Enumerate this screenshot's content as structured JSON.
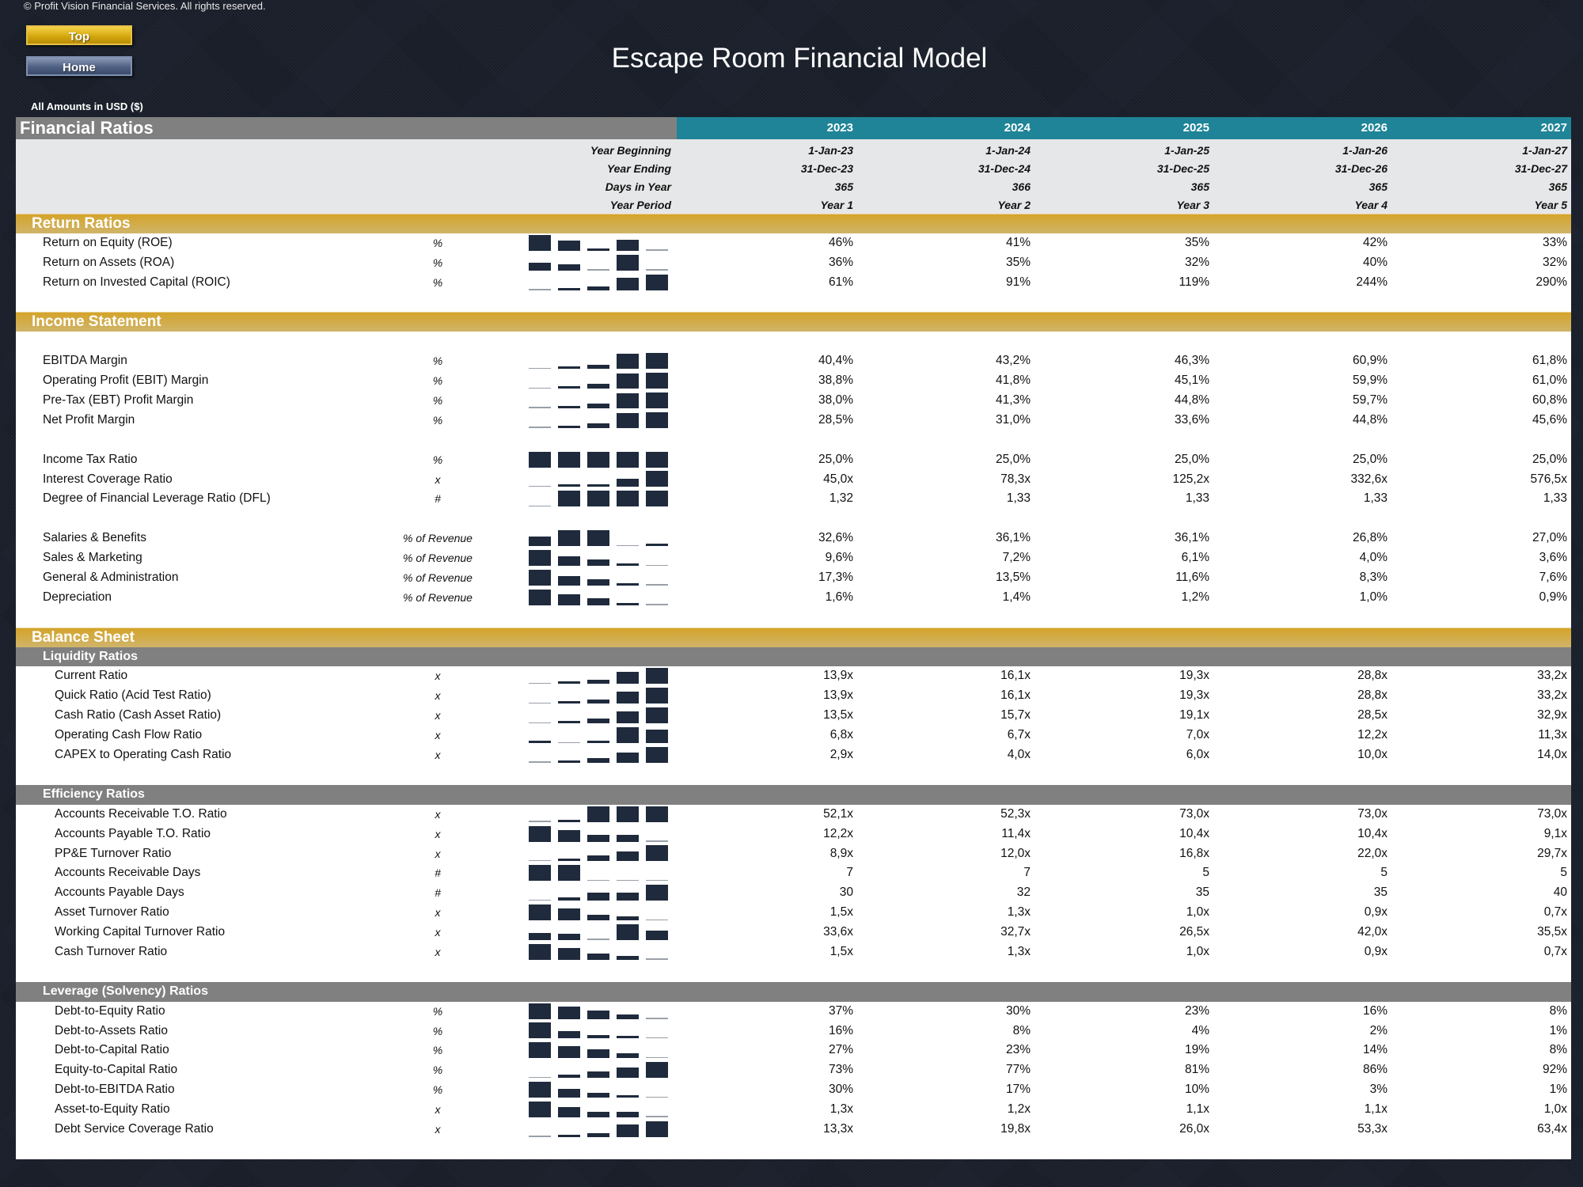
{
  "page": {
    "copyright": "© Profit Vision Financial Services. All rights reserved.",
    "title": "Escape Room Financial Model",
    "currency_note": "All Amounts in  USD ($)"
  },
  "nav": {
    "top_label": "Top",
    "home_label": "Home"
  },
  "colors": {
    "header_gray": "#808080",
    "teal": "#1f8497",
    "gold": "#d4a42a",
    "spark": "#1f2a3c"
  },
  "table": {
    "title": "Financial Ratios",
    "years": [
      "2023",
      "2024",
      "2025",
      "2026",
      "2027"
    ],
    "info": [
      {
        "label": "Year Beginning",
        "values": [
          "1-Jan-23",
          "1-Jan-24",
          "1-Jan-25",
          "1-Jan-26",
          "1-Jan-27"
        ]
      },
      {
        "label": "Year Ending",
        "values": [
          "31-Dec-23",
          "31-Dec-24",
          "31-Dec-25",
          "31-Dec-26",
          "31-Dec-27"
        ]
      },
      {
        "label": "Days in Year",
        "values": [
          "365",
          "366",
          "365",
          "365",
          "365"
        ]
      },
      {
        "label": "Year Period",
        "values": [
          "Year 1",
          "Year 2",
          "Year 3",
          "Year 4",
          "Year 5"
        ]
      }
    ]
  },
  "sections": [
    {
      "title": "Return Ratios",
      "groups": [
        [
          {
            "label": "Return on Equity (ROE)",
            "unit": "%",
            "values": [
              "46%",
              "41%",
              "35%",
              "42%",
              "33%"
            ]
          },
          {
            "label": "Return on Assets (ROA)",
            "unit": "%",
            "values": [
              "36%",
              "35%",
              "32%",
              "40%",
              "32%"
            ]
          },
          {
            "label": "Return on Invested Capital (ROIC)",
            "unit": "%",
            "values": [
              "61%",
              "91%",
              "119%",
              "244%",
              "290%"
            ]
          }
        ]
      ]
    },
    {
      "title": "Income Statement",
      "groups": [
        [],
        [
          {
            "label": "EBITDA Margin",
            "unit": "%",
            "values": [
              "40,4%",
              "43,2%",
              "46,3%",
              "60,9%",
              "61,8%"
            ]
          },
          {
            "label": "Operating Profit (EBIT) Margin",
            "unit": "%",
            "values": [
              "38,8%",
              "41,8%",
              "45,1%",
              "59,9%",
              "61,0%"
            ]
          },
          {
            "label": "Pre-Tax (EBT) Profit Margin",
            "unit": "%",
            "values": [
              "38,0%",
              "41,3%",
              "44,8%",
              "59,7%",
              "60,8%"
            ]
          },
          {
            "label": "Net Profit Margin",
            "unit": "%",
            "values": [
              "28,5%",
              "31,0%",
              "33,6%",
              "44,8%",
              "45,6%"
            ]
          }
        ],
        [
          {
            "label": "Income Tax Ratio",
            "unit": "%",
            "values": [
              "25,0%",
              "25,0%",
              "25,0%",
              "25,0%",
              "25,0%"
            ]
          },
          {
            "label": "Interest Coverage Ratio",
            "unit": "x",
            "values": [
              "45,0x",
              "78,3x",
              "125,2x",
              "332,6x",
              "576,5x"
            ]
          },
          {
            "label": "Degree of Financial Leverage Ratio (DFL)",
            "unit": "#",
            "values": [
              "1,32",
              "1,33",
              "1,33",
              "1,33",
              "1,33"
            ]
          }
        ],
        [
          {
            "label": "Salaries & Benefits",
            "unit": "% of Revenue",
            "values": [
              "32,6%",
              "36,1%",
              "36,1%",
              "26,8%",
              "27,0%"
            ]
          },
          {
            "label": "Sales & Marketing",
            "unit": "% of Revenue",
            "values": [
              "9,6%",
              "7,2%",
              "6,1%",
              "4,0%",
              "3,6%"
            ]
          },
          {
            "label": "General & Administration",
            "unit": "% of Revenue",
            "values": [
              "17,3%",
              "13,5%",
              "11,6%",
              "8,3%",
              "7,6%"
            ]
          },
          {
            "label": "Depreciation",
            "unit": "% of Revenue",
            "values": [
              "1,6%",
              "1,4%",
              "1,2%",
              "1,0%",
              "0,9%"
            ]
          }
        ]
      ]
    },
    {
      "title": "Balance Sheet",
      "subsections": [
        {
          "title": "Liquidity Ratios",
          "rows": [
            {
              "label": "Current Ratio",
              "unit": "x",
              "values": [
                "13,9x",
                "16,1x",
                "19,3x",
                "28,8x",
                "33,2x"
              ]
            },
            {
              "label": "Quick Ratio (Acid Test Ratio)",
              "unit": "x",
              "values": [
                "13,9x",
                "16,1x",
                "19,3x",
                "28,8x",
                "33,2x"
              ]
            },
            {
              "label": "Cash Ratio (Cash Asset Ratio)",
              "unit": "x",
              "values": [
                "13,5x",
                "15,7x",
                "19,1x",
                "28,5x",
                "32,9x"
              ]
            },
            {
              "label": "Operating Cash Flow Ratio",
              "unit": "x",
              "values": [
                "6,8x",
                "6,7x",
                "7,0x",
                "12,2x",
                "11,3x"
              ]
            },
            {
              "label": "CAPEX to Operating Cash Ratio",
              "unit": "x",
              "values": [
                "2,9x",
                "4,0x",
                "6,0x",
                "10,0x",
                "14,0x"
              ]
            }
          ]
        },
        {
          "title": "Efficiency Ratios",
          "rows": [
            {
              "label": "Accounts Receivable T.O. Ratio",
              "unit": "x",
              "values": [
                "52,1x",
                "52,3x",
                "73,0x",
                "73,0x",
                "73,0x"
              ]
            },
            {
              "label": "Accounts Payable T.O. Ratio",
              "unit": "x",
              "values": [
                "12,2x",
                "11,4x",
                "10,4x",
                "10,4x",
                "9,1x"
              ]
            },
            {
              "label": "PP&E Turnover Ratio",
              "unit": "x",
              "values": [
                "8,9x",
                "12,0x",
                "16,8x",
                "22,0x",
                "29,7x"
              ]
            },
            {
              "label": "Accounts Receivable Days",
              "unit": "#",
              "values": [
                "7",
                "7",
                "5",
                "5",
                "5"
              ]
            },
            {
              "label": "Accounts Payable Days",
              "unit": "#",
              "values": [
                "30",
                "32",
                "35",
                "35",
                "40"
              ]
            },
            {
              "label": "Asset Turnover Ratio",
              "unit": "x",
              "values": [
                "1,5x",
                "1,3x",
                "1,0x",
                "0,9x",
                "0,7x"
              ]
            },
            {
              "label": "Working Capital Turnover Ratio",
              "unit": "x",
              "values": [
                "33,6x",
                "32,7x",
                "26,5x",
                "42,0x",
                "35,5x"
              ]
            },
            {
              "label": "Cash Turnover Ratio",
              "unit": "x",
              "values": [
                "1,5x",
                "1,3x",
                "1,0x",
                "0,9x",
                "0,7x"
              ]
            }
          ]
        },
        {
          "title": "Leverage (Solvency) Ratios",
          "rows": [
            {
              "label": "Debt-to-Equity Ratio",
              "unit": "%",
              "values": [
                "37%",
                "30%",
                "23%",
                "16%",
                "8%"
              ]
            },
            {
              "label": "Debt-to-Assets Ratio",
              "unit": "%",
              "values": [
                "16%",
                "8%",
                "4%",
                "2%",
                "1%"
              ]
            },
            {
              "label": "Debt-to-Capital Ratio",
              "unit": "%",
              "values": [
                "27%",
                "23%",
                "19%",
                "14%",
                "8%"
              ]
            },
            {
              "label": "Equity-to-Capital Ratio",
              "unit": "%",
              "values": [
                "73%",
                "77%",
                "81%",
                "86%",
                "92%"
              ]
            },
            {
              "label": "Debt-to-EBITDA Ratio",
              "unit": "%",
              "values": [
                "30%",
                "17%",
                "10%",
                "3%",
                "1%"
              ]
            },
            {
              "label": "Asset-to-Equity Ratio",
              "unit": "x",
              "values": [
                "1,3x",
                "1,2x",
                "1,1x",
                "1,1x",
                "1,0x"
              ]
            },
            {
              "label": "Debt Service Coverage Ratio",
              "unit": "x",
              "values": [
                "13,3x",
                "19,8x",
                "26,0x",
                "53,3x",
                "63,4x"
              ]
            }
          ]
        }
      ]
    }
  ]
}
